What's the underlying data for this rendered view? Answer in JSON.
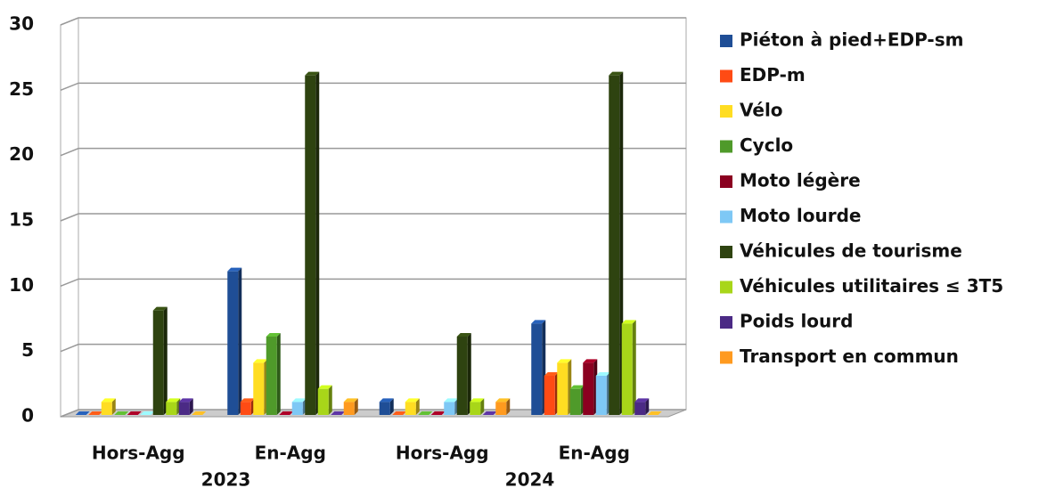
{
  "chart_data": {
    "type": "bar3d",
    "categories": [
      "Hors-Agg",
      "En-Agg",
      "Hors-Agg",
      "En-Agg"
    ],
    "groups": [
      "2023",
      "2024"
    ],
    "series": [
      {
        "name": "Piéton à pied+EDP-sm",
        "color": "#1f4e96",
        "values": [
          0,
          11,
          1,
          7
        ]
      },
      {
        "name": "EDP-m",
        "color": "#ff4b14",
        "values": [
          0,
          1,
          0,
          3
        ]
      },
      {
        "name": "Vélo",
        "color": "#ffdd22",
        "values": [
          1,
          4,
          1,
          4
        ]
      },
      {
        "name": "Cyclo",
        "color": "#4f9a2a",
        "values": [
          0,
          6,
          0,
          2
        ]
      },
      {
        "name": "Moto légère",
        "color": "#8b0020",
        "values": [
          0,
          0,
          0,
          4
        ]
      },
      {
        "name": "Moto lourde",
        "color": "#7ec8f5",
        "values": [
          0,
          1,
          1,
          3
        ]
      },
      {
        "name": "Véhicules de tourisme",
        "color": "#2e4310",
        "values": [
          8,
          26,
          6,
          26
        ]
      },
      {
        "name": "Véhicules utilitaires ≤ 3T5",
        "color": "#a8d619",
        "values": [
          1,
          2,
          1,
          7
        ]
      },
      {
        "name": "Poids lourd",
        "color": "#4b2a85",
        "values": [
          1,
          0,
          0,
          1
        ]
      },
      {
        "name": "Transport en commun",
        "color": "#ff9a1f",
        "values": [
          0,
          1,
          1,
          0
        ]
      }
    ],
    "ylim": [
      0,
      30
    ],
    "yticks": [
      0,
      5,
      10,
      15,
      20,
      25,
      30
    ],
    "grid": true,
    "legend": "right"
  }
}
